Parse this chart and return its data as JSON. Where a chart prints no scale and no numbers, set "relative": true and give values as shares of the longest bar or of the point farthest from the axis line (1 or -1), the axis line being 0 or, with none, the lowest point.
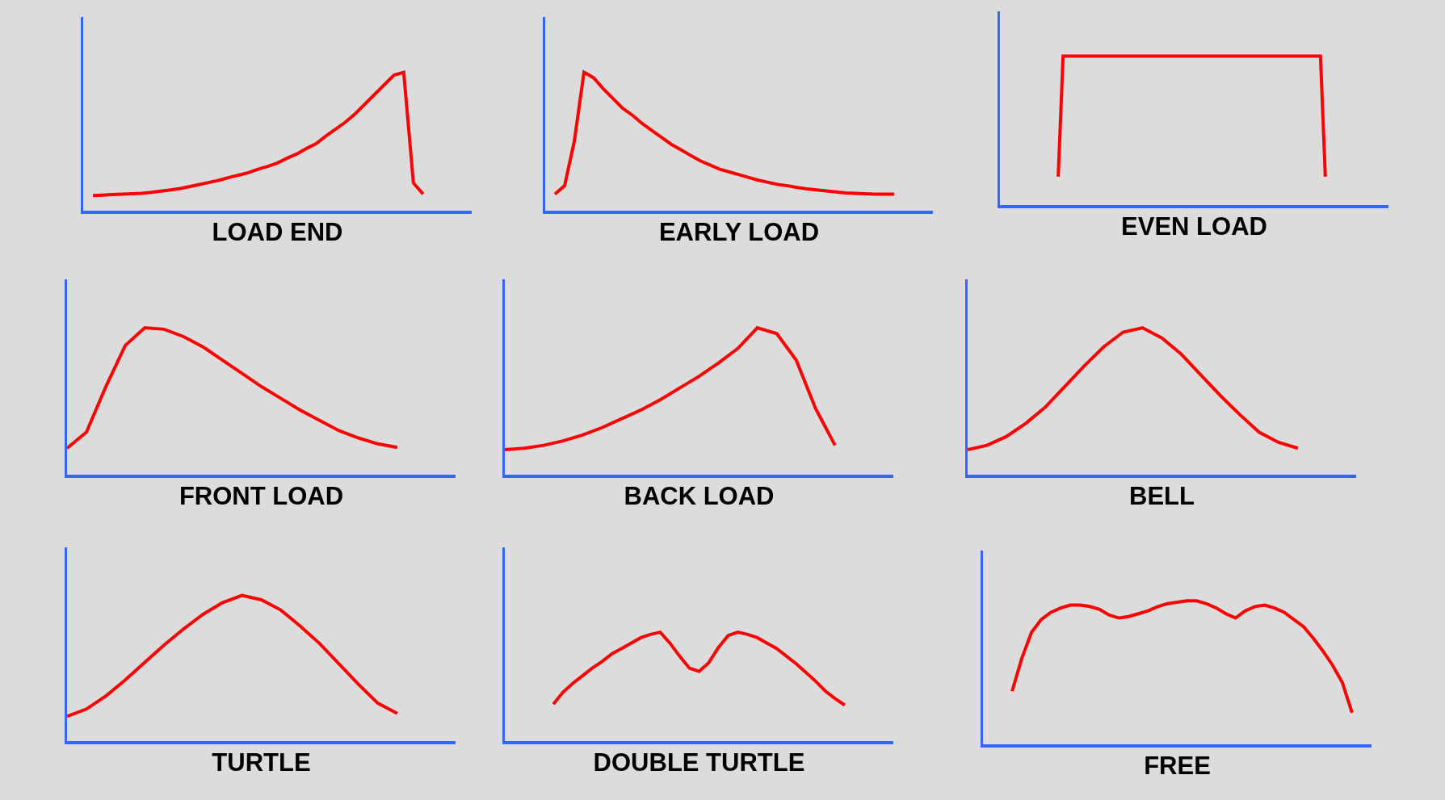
{
  "chart_data": [
    {
      "type": "line",
      "relative": true,
      "xlabel": "LOAD END",
      "categories": [
        null,
        null,
        null,
        null,
        null,
        null,
        null,
        null,
        null,
        null,
        null,
        null,
        null,
        null,
        null,
        null,
        null,
        null,
        null,
        null,
        null,
        null,
        null,
        null,
        null,
        null,
        null,
        null,
        null,
        null,
        null,
        null,
        null,
        null,
        null,
        null,
        null,
        null,
        null,
        null,
        null
      ],
      "series": [
        {
          "color": "#ff0000",
          "values": [
            null,
            0.11,
            0.113,
            0.116,
            0.12,
            0.123,
            0.126,
            0.133,
            0.142,
            0.15,
            0.16,
            0.175,
            0.19,
            0.205,
            0.22,
            0.24,
            0.257,
            0.275,
            0.3,
            0.32,
            0.345,
            0.38,
            0.41,
            0.45,
            0.485,
            0.54,
            0.59,
            0.64,
            0.7,
            0.77,
            0.84,
            0.91,
            0.98,
            1,
            0.2,
            0.12,
            null,
            null,
            null,
            null,
            null
          ]
        }
      ]
    },
    {
      "type": "line",
      "relative": true,
      "xlabel": "EARLY LOAD",
      "categories": [
        null,
        null,
        null,
        null,
        null,
        null,
        null,
        null,
        null,
        null,
        null,
        null,
        null,
        null,
        null,
        null,
        null,
        null,
        null,
        null,
        null,
        null,
        null,
        null,
        null,
        null,
        null,
        null,
        null,
        null,
        null,
        null,
        null,
        null,
        null,
        null,
        null,
        null,
        null,
        null,
        null
      ],
      "series": [
        {
          "color": "#ff0000",
          "values": [
            null,
            0.12,
            0.18,
            0.5,
            1,
            0.96,
            0.88,
            0.81,
            0.74,
            0.69,
            0.63,
            0.58,
            0.53,
            0.48,
            0.44,
            0.4,
            0.36,
            0.33,
            0.3,
            0.28,
            0.26,
            0.24,
            0.22,
            0.205,
            0.19,
            0.18,
            0.168,
            0.158,
            0.15,
            0.143,
            0.135,
            0.128,
            0.125,
            0.122,
            0.12,
            0.12,
            0.12,
            null,
            null,
            null,
            null
          ]
        }
      ]
    },
    {
      "type": "line",
      "relative": true,
      "xlabel": "EVEN LOAD",
      "categories": [
        null,
        null,
        null,
        null,
        null,
        null,
        null,
        null,
        null,
        null,
        null,
        null,
        null,
        null,
        null,
        null,
        null,
        null,
        null,
        null,
        null,
        null,
        null,
        null,
        null,
        null,
        null,
        null,
        null,
        null,
        null,
        null,
        null,
        null,
        null,
        null,
        null,
        null,
        null,
        null,
        null,
        null,
        null,
        null,
        null,
        null,
        null,
        null,
        null,
        null,
        null,
        null,
        null,
        null,
        null,
        null,
        null,
        null,
        null,
        null,
        null,
        null,
        null,
        null,
        null,
        null,
        null,
        null,
        null,
        null,
        null,
        null,
        null,
        null,
        null,
        null,
        null,
        null,
        null,
        null,
        null
      ],
      "series": [
        {
          "color": "#ff0000",
          "values": [
            null,
            null,
            null,
            null,
            null,
            null,
            null,
            null,
            null,
            null,
            null,
            null,
            0.19,
            1,
            1,
            1,
            1,
            1,
            1,
            1,
            1,
            1,
            1,
            1,
            1,
            1,
            1,
            1,
            1,
            1,
            1,
            1,
            1,
            1,
            1,
            1,
            1,
            1,
            1,
            1,
            1,
            1,
            1,
            1,
            1,
            1,
            1,
            1,
            1,
            1,
            1,
            1,
            1,
            1,
            1,
            1,
            1,
            1,
            1,
            1,
            1,
            1,
            1,
            1,
            1,
            1,
            1,
            0.19,
            null,
            null,
            null,
            null,
            null,
            null,
            null,
            null,
            null,
            null,
            null,
            null,
            null
          ]
        }
      ]
    },
    {
      "type": "line",
      "relative": true,
      "xlabel": "FRONT LOAD",
      "categories": [
        null,
        null,
        null,
        null,
        null,
        null,
        null,
        null,
        null,
        null,
        null,
        null,
        null,
        null,
        null,
        null,
        null,
        null,
        null,
        null,
        null
      ],
      "series": [
        {
          "color": "#ff0000",
          "values": [
            0.18,
            0.29,
            0.6,
            0.88,
            1,
            0.99,
            0.94,
            0.87,
            0.78,
            0.69,
            0.6,
            0.52,
            0.44,
            0.37,
            0.3,
            0.25,
            0.21,
            0.185,
            null,
            null,
            null
          ]
        }
      ]
    },
    {
      "type": "line",
      "relative": true,
      "xlabel": "BACK LOAD",
      "categories": [
        null,
        null,
        null,
        null,
        null,
        null,
        null,
        null,
        null,
        null,
        null,
        null,
        null,
        null,
        null,
        null,
        null,
        null,
        null,
        null,
        null
      ],
      "series": [
        {
          "color": "#ff0000",
          "values": [
            0.17,
            0.18,
            0.2,
            0.23,
            0.27,
            0.32,
            0.38,
            0.44,
            0.51,
            0.59,
            0.67,
            0.76,
            0.86,
            1,
            0.96,
            0.78,
            0.45,
            0.2,
            null,
            null,
            null
          ]
        }
      ]
    },
    {
      "type": "line",
      "relative": true,
      "xlabel": "BELL",
      "categories": [
        null,
        null,
        null,
        null,
        null,
        null,
        null,
        null,
        null,
        null,
        null,
        null,
        null,
        null,
        null,
        null,
        null,
        null,
        null,
        null,
        null
      ],
      "series": [
        {
          "color": "#ff0000",
          "values": [
            0.17,
            0.2,
            0.26,
            0.35,
            0.46,
            0.6,
            0.74,
            0.87,
            0.97,
            1,
            0.93,
            0.82,
            0.68,
            0.54,
            0.41,
            0.29,
            0.22,
            0.18,
            null,
            null,
            null
          ]
        }
      ]
    },
    {
      "type": "line",
      "relative": true,
      "xlabel": "TURTLE",
      "categories": [
        null,
        null,
        null,
        null,
        null,
        null,
        null,
        null,
        null,
        null,
        null,
        null,
        null,
        null,
        null,
        null,
        null,
        null,
        null,
        null,
        null
      ],
      "series": [
        {
          "color": "#ff0000",
          "values": [
            0.17,
            0.22,
            0.31,
            0.42,
            0.54,
            0.66,
            0.77,
            0.87,
            0.95,
            1,
            0.97,
            0.9,
            0.79,
            0.67,
            0.53,
            0.39,
            0.26,
            0.19,
            null,
            null,
            null
          ]
        }
      ]
    },
    {
      "type": "line",
      "relative": true,
      "xlabel": "DOUBLE TURTLE",
      "categories": [
        null,
        null,
        null,
        null,
        null,
        null,
        null,
        null,
        null,
        null,
        null,
        null,
        null,
        null,
        null,
        null,
        null,
        null,
        null,
        null,
        null,
        null,
        null,
        null,
        null,
        null,
        null,
        null,
        null,
        null,
        null,
        null,
        null,
        null,
        null,
        null,
        null,
        null,
        null,
        null,
        null
      ],
      "series": [
        {
          "color": "#ff0000",
          "values": [
            null,
            null,
            null,
            null,
            null,
            0.34,
            0.45,
            0.53,
            0.6,
            0.67,
            0.73,
            0.8,
            0.85,
            0.9,
            0.95,
            0.98,
            1,
            0.9,
            0.78,
            0.67,
            0.64,
            0.72,
            0.86,
            0.97,
            1,
            0.98,
            0.95,
            0.9,
            0.85,
            0.78,
            0.71,
            0.63,
            0.55,
            0.46,
            0.39,
            0.33,
            null,
            null,
            null,
            null,
            null
          ]
        }
      ]
    },
    {
      "type": "line",
      "relative": true,
      "xlabel": "FREE",
      "categories": [
        null,
        null,
        null,
        null,
        null,
        null,
        null,
        null,
        null,
        null,
        null,
        null,
        null,
        null,
        null,
        null,
        null,
        null,
        null,
        null,
        null,
        null,
        null,
        null,
        null,
        null,
        null,
        null,
        null,
        null,
        null,
        null,
        null,
        null,
        null,
        null,
        null,
        null,
        null,
        null,
        null
      ],
      "series": [
        {
          "color": "#ff0000",
          "values": [
            null,
            null,
            null,
            0.37,
            0.6,
            0.78,
            0.87,
            0.92,
            0.95,
            0.97,
            0.97,
            0.96,
            0.94,
            0.9,
            0.88,
            0.89,
            0.91,
            0.93,
            0.96,
            0.98,
            0.99,
            1,
            1,
            0.98,
            0.95,
            0.91,
            0.88,
            0.93,
            0.96,
            0.97,
            0.95,
            0.92,
            0.87,
            0.82,
            0.74,
            0.65,
            0.55,
            0.43,
            0.22,
            null,
            null
          ]
        }
      ]
    }
  ]
}
